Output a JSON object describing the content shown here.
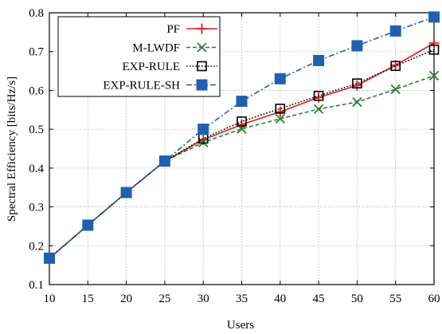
{
  "chart_data": {
    "type": "line",
    "title": "",
    "xlabel": "Users",
    "ylabel": "Spectral Efficiency [bits/Hz/s]",
    "x": [
      10,
      15,
      20,
      25,
      30,
      35,
      40,
      45,
      50,
      55,
      60
    ],
    "xlim": [
      10,
      60
    ],
    "ylim": [
      0.1,
      0.8
    ],
    "xticks": [
      "10",
      "15",
      "20",
      "25",
      "30",
      "35",
      "40",
      "45",
      "50",
      "55",
      "60"
    ],
    "yticks": [
      "0.1",
      "0.2",
      "0.3",
      "0.4",
      "0.5",
      "0.6",
      "0.7",
      "0.8"
    ],
    "grid": true,
    "legend_position": "top-left",
    "series": [
      {
        "name": "PF",
        "color": "#e41a1c",
        "line": "solid",
        "marker": "plus",
        "values": [
          0.168,
          0.253,
          0.337,
          0.418,
          0.473,
          0.512,
          0.545,
          0.582,
          0.613,
          0.665,
          0.722
        ]
      },
      {
        "name": "M-LWDF",
        "color": "#2e7d32",
        "line": "dashed",
        "marker": "x",
        "values": [
          0.168,
          0.253,
          0.337,
          0.418,
          0.466,
          0.501,
          0.527,
          0.552,
          0.57,
          0.603,
          0.638
        ]
      },
      {
        "name": "EXP-RULE",
        "color": "#000000",
        "line": "dotted",
        "marker": "open-square",
        "values": [
          0.168,
          0.253,
          0.337,
          0.418,
          0.476,
          0.52,
          0.553,
          0.586,
          0.618,
          0.663,
          0.705
        ]
      },
      {
        "name": "EXP-RULE-SH",
        "color": "#2060b0",
        "line": "dash-dot",
        "marker": "filled-square",
        "values": [
          0.168,
          0.253,
          0.337,
          0.418,
          0.5,
          0.572,
          0.63,
          0.677,
          0.715,
          0.753,
          0.789
        ]
      }
    ]
  }
}
